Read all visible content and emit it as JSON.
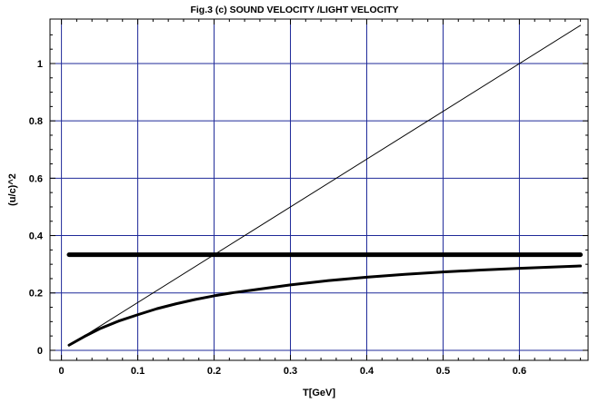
{
  "chart_data": {
    "type": "line",
    "title": "Fig.3 (c) SOUND VELOCITY /LIGHT VELOCITY",
    "xlabel": "T[GeV]",
    "ylabel": "(u/c)^2",
    "xlim": [
      -0.015,
      0.69
    ],
    "ylim": [
      -0.035,
      1.155
    ],
    "xticks": [
      0,
      0.1,
      0.2,
      0.3,
      0.4,
      0.5,
      0.6
    ],
    "xtick_labels": [
      "0",
      "0.1",
      "0.2",
      "0.3",
      "0.4",
      "0.5",
      "0.6"
    ],
    "yticks": [
      0,
      0.2,
      0.4,
      0.6,
      0.8,
      1
    ],
    "ytick_labels": [
      "0",
      "0.2",
      "0.4",
      "0.6",
      "0.8",
      "1"
    ],
    "grid": true,
    "grid_color": "#1f2a99",
    "series": [
      {
        "style": "thin",
        "color": "#000000",
        "x": [
          0.01,
          0.68
        ],
        "y": [
          0.0167,
          1.133
        ]
      },
      {
        "style": "thick",
        "color": "#000000",
        "x": [
          0.01,
          0.68
        ],
        "y": [
          0.3333,
          0.3333
        ]
      },
      {
        "style": "medium",
        "color": "#000000",
        "x": [
          0.01,
          0.03,
          0.05,
          0.075,
          0.1,
          0.125,
          0.15,
          0.175,
          0.2,
          0.225,
          0.25,
          0.3,
          0.35,
          0.4,
          0.45,
          0.5,
          0.55,
          0.6,
          0.65,
          0.68
        ],
        "y": [
          0.018,
          0.048,
          0.075,
          0.102,
          0.124,
          0.145,
          0.162,
          0.177,
          0.19,
          0.201,
          0.21,
          0.228,
          0.243,
          0.255,
          0.265,
          0.273,
          0.28,
          0.286,
          0.291,
          0.294
        ]
      }
    ]
  }
}
